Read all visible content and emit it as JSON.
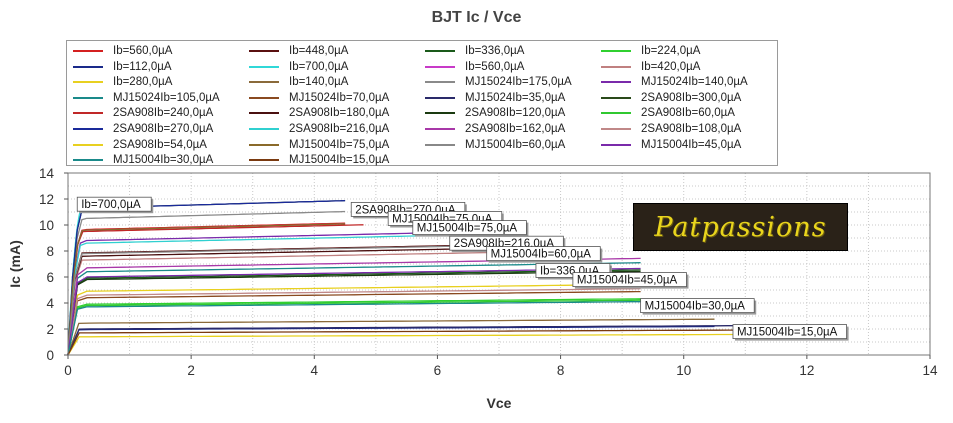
{
  "chart_data": {
    "type": "line",
    "title": "BJT Ic / Vce",
    "xlabel": "Vce",
    "ylabel": "Ic (mA)",
    "xlim": [
      0,
      14
    ],
    "ylim": [
      0,
      14
    ],
    "xticks": [
      "0",
      "2",
      "4",
      "6",
      "8",
      "10",
      "12",
      "14"
    ],
    "yticks": [
      "0",
      "2",
      "4",
      "6",
      "8",
      "10",
      "12",
      "14"
    ],
    "grid": true,
    "legend_position": "top",
    "series": [
      {
        "name": "Ib=560,0µA",
        "color": "#d42020",
        "sat": 9.65,
        "xmax": 4.5
      },
      {
        "name": "Ib=448,0µA",
        "color": "#5a1010",
        "sat": 7.85,
        "xmax": 6.8
      },
      {
        "name": "Ib=336,0µA",
        "color": "#1a5a1a",
        "sat": 5.9,
        "xmax": 9.3
      },
      {
        "name": "Ib=224,0µA",
        "color": "#30d030",
        "sat": 3.9,
        "xmax": 9.3
      },
      {
        "name": "Ib=112,0µA",
        "color": "#1a2a8a",
        "sat": 1.95,
        "xmax": 10.5
      },
      {
        "name": "Ib=700,0µA",
        "color": "#30d8d8",
        "sat": 11.6,
        "xmax": 0.3
      },
      {
        "name": "Ib=560,0µA",
        "color": "#c83ac8",
        "sat": 9.6,
        "xmax": 4.5
      },
      {
        "name": "Ib=420,0µA",
        "color": "#c08080",
        "sat": 7.3,
        "xmax": 6.8
      },
      {
        "name": "Ib=280,0µA",
        "color": "#e8d020",
        "sat": 4.9,
        "xmax": 9.3
      },
      {
        "name": "Ib=140,0µA",
        "color": "#8a6a3a",
        "sat": 2.45,
        "xmax": 10.5
      },
      {
        "name": "MJ15024Ib=175,0µA",
        "color": "#8a8a8a",
        "sat": 10.5,
        "xmax": 4.5
      },
      {
        "name": "MJ15024Ib=140,0µA",
        "color": "#7a2aaa",
        "sat": 8.8,
        "xmax": 6.0
      },
      {
        "name": "MJ15024Ib=105,0µA",
        "color": "#1a8a8a",
        "sat": 6.4,
        "xmax": 9.3
      },
      {
        "name": "MJ15024Ib=70,0µA",
        "color": "#8a4a20",
        "sat": 4.4,
        "xmax": 9.3
      },
      {
        "name": "MJ15024Ib=35,0µA",
        "color": "#2a2a6a",
        "sat": 2.0,
        "xmax": 10.9
      },
      {
        "name": "2SA908Ib=300,0µA",
        "color": "#2a4a1a",
        "sat": 11.3,
        "xmax": 4.5
      },
      {
        "name": "2SA908Ib=240,0µA",
        "color": "#c02828",
        "sat": 9.5,
        "xmax": 4.8
      },
      {
        "name": "2SA908Ib=180,0µA",
        "color": "#4a1010",
        "sat": 7.6,
        "xmax": 6.8
      },
      {
        "name": "2SA908Ib=120,0µA",
        "color": "#1a3a10",
        "sat": 5.8,
        "xmax": 9.3
      },
      {
        "name": "2SA908Ib=60,0µA",
        "color": "#30c830",
        "sat": 3.8,
        "xmax": 9.3
      },
      {
        "name": "2SA908Ib=270,0µA",
        "color": "#1a2a9a",
        "sat": 11.3,
        "xmax": 4.5
      },
      {
        "name": "2SA908Ib=216,0µA",
        "color": "#30d0d0",
        "sat": 8.6,
        "xmax": 6.0
      },
      {
        "name": "2SA908Ib=162,0µA",
        "color": "#a838a8",
        "sat": 6.7,
        "xmax": 9.3
      },
      {
        "name": "2SA908Ib=108,0µA",
        "color": "#c08888",
        "sat": 4.6,
        "xmax": 9.3
      },
      {
        "name": "2SA908Ib=54,0µA",
        "color": "#e8d020",
        "sat": 1.4,
        "xmax": 10.9
      },
      {
        "name": "MJ15004Ib=75,0µA",
        "color": "#8a6a2a",
        "sat": 9.6,
        "xmax": 4.5
      },
      {
        "name": "MJ15004Ib=60,0µA",
        "color": "#888888",
        "sat": 7.8,
        "xmax": 6.8
      },
      {
        "name": "MJ15004Ib=45,0µA",
        "color": "#7a2aaa",
        "sat": 6.0,
        "xmax": 9.3
      },
      {
        "name": "MJ15004Ib=30,0µA",
        "color": "#1a8a8a",
        "sat": 3.7,
        "xmax": 9.3
      },
      {
        "name": "MJ15004Ib=15,0µA",
        "color": "#7a3a10",
        "sat": 1.7,
        "xmax": 10.9
      }
    ],
    "annotations": [
      {
        "text": "Ib=700,0µA",
        "x": 0.15,
        "y": 11.6
      },
      {
        "text": "2SA908Ib=270,0µA",
        "x": 4.6,
        "y": 11.2
      },
      {
        "text": "MJ15004Ib=75,0µA",
        "x": 5.2,
        "y": 10.5
      },
      {
        "text": "MJ15004Ib=75,0µA",
        "x": 5.6,
        "y": 9.8
      },
      {
        "text": "2SA908Ib=216,0µA",
        "x": 6.2,
        "y": 8.6
      },
      {
        "text": "MJ15004Ib=60,0µA",
        "x": 6.8,
        "y": 7.8
      },
      {
        "text": "Ib=336,0µA",
        "x": 7.6,
        "y": 6.5
      },
      {
        "text": "MJ15004Ib=45,0µA",
        "x": 8.2,
        "y": 5.8
      },
      {
        "text": "MJ15004Ib=30,0µA",
        "x": 9.3,
        "y": 3.8
      },
      {
        "text": "MJ15004Ib=15,0µA",
        "x": 10.8,
        "y": 1.8
      }
    ]
  },
  "logo": {
    "text": "Patpassions"
  }
}
